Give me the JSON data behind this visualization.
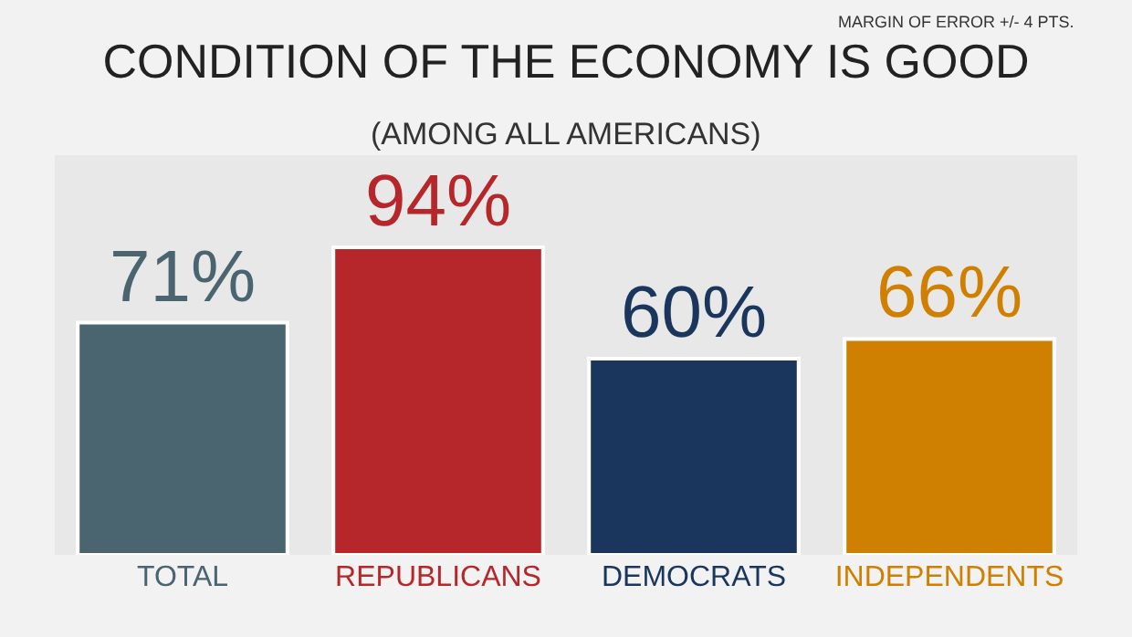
{
  "chart_data": {
    "type": "bar",
    "title": "CONDITION OF THE ECONOMY IS GOOD",
    "subtitle": "(AMONG ALL AMERICANS)",
    "annotations": [
      "MARGIN OF ERROR +/- 4 PTS."
    ],
    "categories": [
      "TOTAL",
      "REPUBLICANS",
      "DEMOCRATS",
      "INDEPENDENTS"
    ],
    "values": [
      71,
      94,
      60,
      66
    ],
    "colors": [
      "#4a6470",
      "#b5272a",
      "#1b365d",
      "#d08000"
    ],
    "value_labels": [
      "71%",
      "94%",
      "60%",
      "66%"
    ],
    "grid": false
  }
}
